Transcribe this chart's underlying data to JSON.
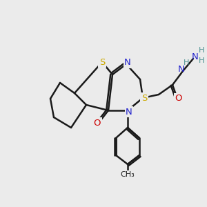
{
  "bg_color": "#ebebeb",
  "bond_color": "#1a1a1a",
  "bond_width": 1.8,
  "atom_colors": {
    "S": "#ccaa00",
    "N": "#2222cc",
    "O": "#cc0000",
    "H": "#4a9090",
    "C": "#1a1a1a"
  },
  "font_size_atom": 9,
  "font_size_H": 8
}
